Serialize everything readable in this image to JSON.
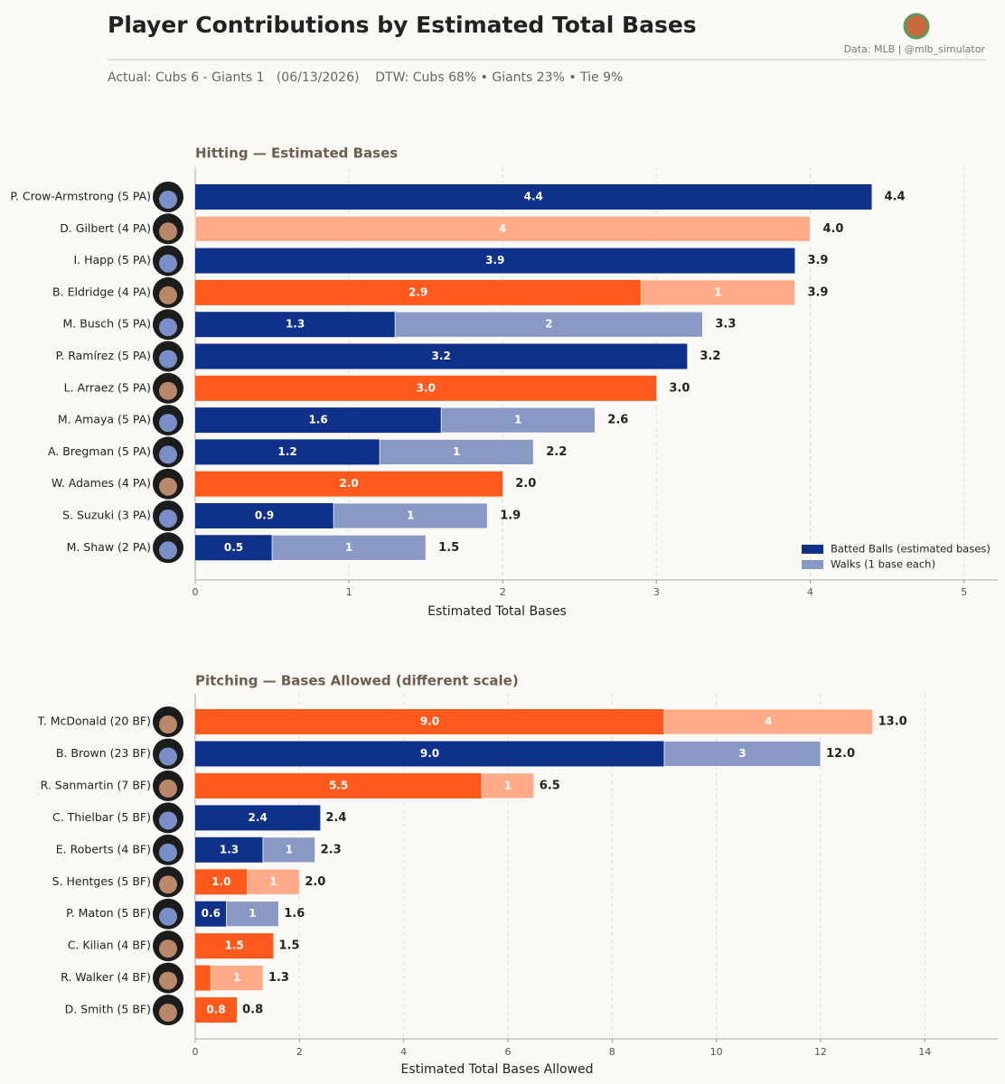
{
  "header": {
    "title": "Player Contributions by Estimated Total Bases",
    "source": "Data: MLB  |  @mlb_simulator",
    "subtitle": "Actual: Cubs 6 - Giants 1   (06/13/2026)    DTW: Cubs 68% • Giants 23% • Tie 9%"
  },
  "chart_data": [
    {
      "type": "stacked-bar-horizontal",
      "title": "Hitting  —  Estimated Bases",
      "x_label": "Estimated Total Bases",
      "categories": [
        "P. Crow-Armstrong  (5 PA)",
        "D. Gilbert  (4 PA)",
        "I. Happ  (5 PA)",
        "B. Eldridge  (4 PA)",
        "M. Busch  (5 PA)",
        "P. Ramírez  (5 PA)",
        "L. Arraez  (5 PA)",
        "M. Amaya  (5 PA)",
        "A. Bregman  (5 PA)",
        "W. Adames  (4 PA)",
        "S. Suzuki  (3 PA)",
        "M. Shaw  (2 PA)"
      ],
      "series": [
        {
          "name": "Batted Balls (estimated bases)",
          "color": "#10318a",
          "values": [
            4.4,
            null,
            3.9,
            2.9,
            1.3,
            3.2,
            3.0,
            1.6,
            1.2,
            2.0,
            0.9,
            0.5
          ],
          "value_labels": [
            "4.4",
            null,
            "3.9",
            "2.9",
            "1.3",
            "3.2",
            "3.0",
            "1.6",
            "1.2",
            "2.0",
            "0.9",
            "0.5"
          ],
          "colors": [
            "#10318a",
            "#ffab8a",
            "#10318a",
            "#fe5a1d",
            "#10318a",
            "#10318a",
            "#fe5a1d",
            "#10318a",
            "#10318a",
            "#fe5a1d",
            "#10318a",
            "#10318a"
          ]
        },
        {
          "name": "Walks (1 base each)",
          "color": "#8899c4",
          "values": [
            null,
            4,
            null,
            1,
            2,
            null,
            null,
            1,
            1,
            null,
            1,
            1
          ],
          "value_labels": [
            null,
            "4",
            null,
            "1",
            "2",
            null,
            null,
            "1",
            "1",
            null,
            "1",
            "1"
          ],
          "colors": [
            "#8899c4",
            "#ffab8a",
            "#8899c4",
            "#ffab8a",
            "#8899c4",
            "#8899c4",
            "#ffab8a",
            "#8899c4",
            "#8899c4",
            "#ffab8a",
            "#8899c4",
            "#8899c4"
          ]
        }
      ],
      "total_labels": [
        "4.4",
        "4.0",
        "3.9",
        "3.9",
        "3.3",
        "3.2",
        "3.0",
        "2.6",
        "2.2",
        "2.0",
        "1.9",
        "1.5"
      ],
      "xlim": [
        0,
        5.22
      ],
      "xticks": [
        0,
        1,
        2,
        3,
        4,
        5
      ],
      "grid": true,
      "legend": "lower right"
    },
    {
      "type": "stacked-bar-horizontal",
      "title": "Pitching  —  Bases Allowed  (different scale)",
      "x_label": "Estimated Total Bases Allowed",
      "categories": [
        "T. McDonald  (20 BF)",
        "B. Brown  (23 BF)",
        "R. Sanmartin  (7 BF)",
        "C. Thielbar  (5 BF)",
        "E. Roberts  (4 BF)",
        "S. Hentges  (5 BF)",
        "P. Maton  (5 BF)",
        "C. Kilian  (4 BF)",
        "R. Walker  (4 BF)",
        "D. Smith  (5 BF)"
      ],
      "series": [
        {
          "name": "Batted Balls (estimated bases)",
          "color": "#10318a",
          "values": [
            9.0,
            9.0,
            5.5,
            2.4,
            1.3,
            1.0,
            0.6,
            1.5,
            0.3,
            0.8
          ],
          "value_labels": [
            "9.0",
            "9.0",
            "5.5",
            "2.4",
            "1.3",
            "1.0",
            "0.6",
            "1.5",
            null,
            "0.8"
          ],
          "colors": [
            "#fe5a1d",
            "#10318a",
            "#fe5a1d",
            "#10318a",
            "#10318a",
            "#fe5a1d",
            "#10318a",
            "#fe5a1d",
            "#fe5a1d",
            "#fe5a1d"
          ]
        },
        {
          "name": "Walks (1 base each)",
          "color": "#8899c4",
          "values": [
            4,
            3,
            1,
            null,
            1,
            1,
            1,
            null,
            1,
            null
          ],
          "value_labels": [
            "4",
            "3",
            "1",
            null,
            "1",
            "1",
            "1",
            null,
            "1",
            null
          ],
          "colors": [
            "#ffab8a",
            "#8899c4",
            "#ffab8a",
            "#8899c4",
            "#8899c4",
            "#ffab8a",
            "#8899c4",
            "#ffab8a",
            "#ffab8a",
            "#ffab8a"
          ]
        }
      ],
      "total_labels": [
        "13.0",
        "12.0",
        "6.5",
        "2.4",
        "2.3",
        "2.0",
        "1.6",
        "1.5",
        "1.3",
        "0.8"
      ],
      "xlim": [
        0,
        15.4
      ],
      "xticks": [
        0,
        2,
        4,
        6,
        8,
        10,
        12,
        14
      ],
      "grid": true
    }
  ]
}
